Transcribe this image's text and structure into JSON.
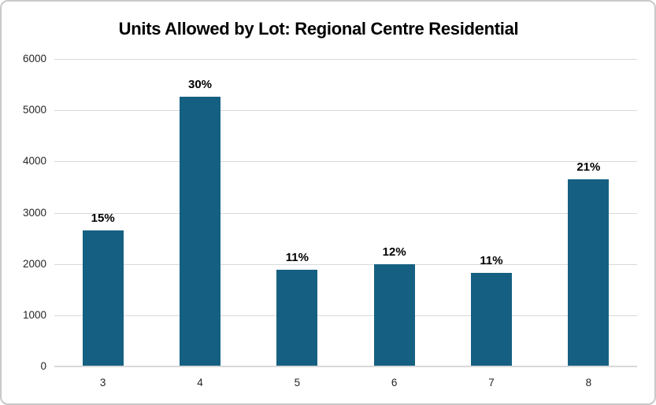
{
  "chart_data": {
    "type": "bar",
    "title": "Units Allowed by Lot: Regional Centre Residential",
    "categories": [
      "3",
      "4",
      "5",
      "6",
      "7",
      "8"
    ],
    "values": [
      2660,
      5270,
      1890,
      2000,
      1830,
      3660
    ],
    "bar_labels": [
      "15%",
      "30%",
      "11%",
      "12%",
      "11%",
      "21%"
    ],
    "xlabel": "",
    "ylabel": "",
    "ylim": [
      0,
      6000
    ],
    "yticks": [
      0,
      1000,
      2000,
      3000,
      4000,
      5000,
      6000
    ],
    "grid": "horizontal",
    "legend": "none",
    "colors": {
      "bar_fill": "#156082",
      "gridline": "#d9d9d9",
      "axis_line": "#d9d9d9",
      "tick_text": "#262626",
      "title_text": "#000000",
      "data_label_text": "#000000",
      "frame_border": "#c9c9c9",
      "background": "#ffffff"
    }
  }
}
